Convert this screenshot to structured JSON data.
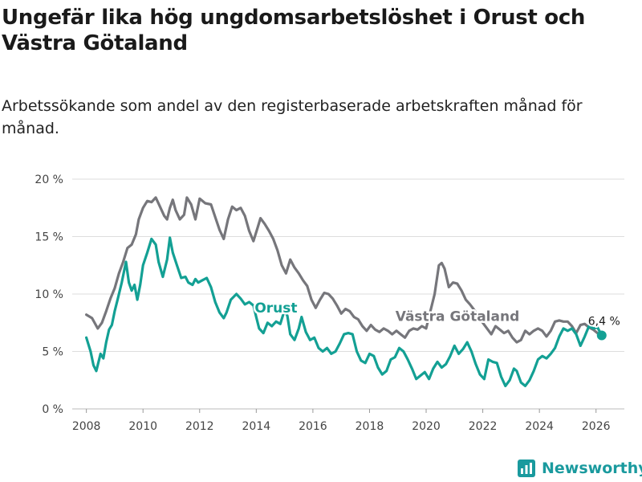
{
  "title": "Ungefär lika hög ungdomsarbetslöshet i Orust och Västra Götaland",
  "subtitle": "Arbetssökande som andel av den registerbaserade arbetskraften månad för månad.",
  "brand": "Newsworthy",
  "colors": {
    "orust": "#13a094",
    "vastra": "#76767b",
    "grid": "#dddddd",
    "axis": "#444444"
  },
  "chart_data": {
    "type": "line",
    "title": "Ungefär lika hög ungdomsarbetslöshet i Orust och Västra Götaland",
    "xlabel": "",
    "ylabel": "",
    "xlim": [
      2007.5,
      2027.0
    ],
    "ylim": [
      0,
      20
    ],
    "yticks": [
      0,
      5,
      10,
      15,
      20
    ],
    "ytick_labels": [
      "0 %",
      "5 %",
      "10 %",
      "15 %",
      "20 %"
    ],
    "xticks": [
      2008,
      2010,
      2012,
      2014,
      2016,
      2018,
      2020,
      2022,
      2024,
      2026
    ],
    "xtick_labels": [
      "2008",
      "2010",
      "2012",
      "2014",
      "2016",
      "2018",
      "2020",
      "2022",
      "2024",
      "2026"
    ],
    "grid": true,
    "series": [
      {
        "name": "Västra Götaland",
        "label": "Västra Götaland",
        "points": [
          [
            2008.0,
            8.2
          ],
          [
            2008.2,
            7.9
          ],
          [
            2008.4,
            7.0
          ],
          [
            2008.55,
            7.5
          ],
          [
            2008.7,
            8.5
          ],
          [
            2008.85,
            9.6
          ],
          [
            2009.0,
            10.5
          ],
          [
            2009.15,
            11.8
          ],
          [
            2009.3,
            12.8
          ],
          [
            2009.45,
            14.0
          ],
          [
            2009.6,
            14.3
          ],
          [
            2009.75,
            15.2
          ],
          [
            2009.85,
            16.5
          ],
          [
            2010.0,
            17.5
          ],
          [
            2010.15,
            18.1
          ],
          [
            2010.3,
            18.0
          ],
          [
            2010.45,
            18.4
          ],
          [
            2010.6,
            17.6
          ],
          [
            2010.75,
            16.8
          ],
          [
            2010.85,
            16.5
          ],
          [
            2010.95,
            17.5
          ],
          [
            2011.05,
            18.2
          ],
          [
            2011.15,
            17.3
          ],
          [
            2011.3,
            16.5
          ],
          [
            2011.45,
            16.9
          ],
          [
            2011.55,
            18.4
          ],
          [
            2011.7,
            17.8
          ],
          [
            2011.85,
            16.5
          ],
          [
            2012.0,
            18.3
          ],
          [
            2012.2,
            17.9
          ],
          [
            2012.4,
            17.8
          ],
          [
            2012.55,
            16.7
          ],
          [
            2012.7,
            15.6
          ],
          [
            2012.85,
            14.8
          ],
          [
            2013.0,
            16.5
          ],
          [
            2013.15,
            17.6
          ],
          [
            2013.3,
            17.3
          ],
          [
            2013.45,
            17.5
          ],
          [
            2013.6,
            16.8
          ],
          [
            2013.75,
            15.5
          ],
          [
            2013.9,
            14.6
          ],
          [
            2014.05,
            15.8
          ],
          [
            2014.15,
            16.6
          ],
          [
            2014.3,
            16.1
          ],
          [
            2014.45,
            15.5
          ],
          [
            2014.6,
            14.8
          ],
          [
            2014.75,
            13.8
          ],
          [
            2014.9,
            12.5
          ],
          [
            2015.05,
            11.8
          ],
          [
            2015.2,
            13.0
          ],
          [
            2015.35,
            12.3
          ],
          [
            2015.5,
            11.8
          ],
          [
            2015.65,
            11.2
          ],
          [
            2015.8,
            10.7
          ],
          [
            2015.95,
            9.5
          ],
          [
            2016.1,
            8.8
          ],
          [
            2016.25,
            9.5
          ],
          [
            2016.4,
            10.1
          ],
          [
            2016.55,
            10.0
          ],
          [
            2016.7,
            9.6
          ],
          [
            2016.85,
            9.0
          ],
          [
            2017.0,
            8.3
          ],
          [
            2017.15,
            8.7
          ],
          [
            2017.3,
            8.5
          ],
          [
            2017.45,
            8.0
          ],
          [
            2017.6,
            7.8
          ],
          [
            2017.75,
            7.2
          ],
          [
            2017.9,
            6.8
          ],
          [
            2018.05,
            7.3
          ],
          [
            2018.2,
            6.9
          ],
          [
            2018.35,
            6.7
          ],
          [
            2018.5,
            7.0
          ],
          [
            2018.65,
            6.8
          ],
          [
            2018.8,
            6.5
          ],
          [
            2018.95,
            6.8
          ],
          [
            2019.1,
            6.5
          ],
          [
            2019.25,
            6.2
          ],
          [
            2019.4,
            6.8
          ],
          [
            2019.55,
            7.0
          ],
          [
            2019.7,
            6.9
          ],
          [
            2019.85,
            7.2
          ],
          [
            2020.0,
            7.0
          ],
          [
            2020.15,
            8.5
          ],
          [
            2020.3,
            10.0
          ],
          [
            2020.45,
            12.5
          ],
          [
            2020.55,
            12.7
          ],
          [
            2020.65,
            12.2
          ],
          [
            2020.8,
            10.6
          ],
          [
            2020.95,
            11.0
          ],
          [
            2021.1,
            10.9
          ],
          [
            2021.25,
            10.3
          ],
          [
            2021.4,
            9.5
          ],
          [
            2021.55,
            9.1
          ],
          [
            2021.7,
            8.6
          ],
          [
            2021.85,
            8.0
          ],
          [
            2022.0,
            7.5
          ],
          [
            2022.15,
            7.0
          ],
          [
            2022.3,
            6.5
          ],
          [
            2022.45,
            7.2
          ],
          [
            2022.6,
            6.9
          ],
          [
            2022.75,
            6.6
          ],
          [
            2022.9,
            6.8
          ],
          [
            2023.05,
            6.2
          ],
          [
            2023.2,
            5.8
          ],
          [
            2023.35,
            6.0
          ],
          [
            2023.5,
            6.8
          ],
          [
            2023.65,
            6.5
          ],
          [
            2023.8,
            6.8
          ],
          [
            2023.95,
            7.0
          ],
          [
            2024.1,
            6.8
          ],
          [
            2024.25,
            6.3
          ],
          [
            2024.4,
            6.8
          ],
          [
            2024.55,
            7.6
          ],
          [
            2024.7,
            7.7
          ],
          [
            2024.85,
            7.6
          ],
          [
            2025.0,
            7.6
          ],
          [
            2025.15,
            7.2
          ],
          [
            2025.3,
            6.6
          ],
          [
            2025.45,
            7.3
          ],
          [
            2025.6,
            7.4
          ],
          [
            2025.75,
            7.1
          ],
          [
            2025.9,
            6.9
          ],
          [
            2026.05,
            6.6
          ]
        ]
      },
      {
        "name": "Orust",
        "label": "Orust",
        "points": [
          [
            2008.0,
            6.2
          ],
          [
            2008.15,
            5.0
          ],
          [
            2008.25,
            3.8
          ],
          [
            2008.35,
            3.3
          ],
          [
            2008.5,
            4.8
          ],
          [
            2008.6,
            4.4
          ],
          [
            2008.7,
            5.8
          ],
          [
            2008.8,
            6.9
          ],
          [
            2008.9,
            7.3
          ],
          [
            2009.0,
            8.5
          ],
          [
            2009.1,
            9.5
          ],
          [
            2009.25,
            11.0
          ],
          [
            2009.4,
            12.8
          ],
          [
            2009.5,
            11.0
          ],
          [
            2009.6,
            10.3
          ],
          [
            2009.7,
            10.8
          ],
          [
            2009.8,
            9.5
          ],
          [
            2009.9,
            10.8
          ],
          [
            2010.0,
            12.5
          ],
          [
            2010.15,
            13.6
          ],
          [
            2010.3,
            14.8
          ],
          [
            2010.45,
            14.3
          ],
          [
            2010.55,
            12.8
          ],
          [
            2010.7,
            11.5
          ],
          [
            2010.85,
            13.0
          ],
          [
            2010.95,
            14.9
          ],
          [
            2011.05,
            13.6
          ],
          [
            2011.2,
            12.5
          ],
          [
            2011.35,
            11.4
          ],
          [
            2011.5,
            11.5
          ],
          [
            2011.6,
            11.0
          ],
          [
            2011.75,
            10.8
          ],
          [
            2011.85,
            11.3
          ],
          [
            2011.95,
            11.0
          ],
          [
            2012.1,
            11.2
          ],
          [
            2012.25,
            11.4
          ],
          [
            2012.4,
            10.6
          ],
          [
            2012.55,
            9.3
          ],
          [
            2012.7,
            8.4
          ],
          [
            2012.85,
            7.9
          ],
          [
            2012.95,
            8.4
          ],
          [
            2013.1,
            9.5
          ],
          [
            2013.3,
            10.0
          ],
          [
            2013.45,
            9.6
          ],
          [
            2013.6,
            9.1
          ],
          [
            2013.75,
            9.3
          ],
          [
            2013.9,
            9.0
          ],
          [
            2014.0,
            8.0
          ],
          [
            2014.1,
            7.0
          ],
          [
            2014.25,
            6.6
          ],
          [
            2014.4,
            7.5
          ],
          [
            2014.55,
            7.2
          ],
          [
            2014.7,
            7.6
          ],
          [
            2014.85,
            7.4
          ],
          [
            2015.0,
            8.6
          ],
          [
            2015.1,
            8.1
          ],
          [
            2015.2,
            6.5
          ],
          [
            2015.35,
            6.0
          ],
          [
            2015.5,
            7.0
          ],
          [
            2015.6,
            8.0
          ],
          [
            2015.75,
            6.7
          ],
          [
            2015.9,
            6.0
          ],
          [
            2016.05,
            6.2
          ],
          [
            2016.2,
            5.3
          ],
          [
            2016.35,
            5.0
          ],
          [
            2016.5,
            5.3
          ],
          [
            2016.65,
            4.8
          ],
          [
            2016.8,
            5.0
          ],
          [
            2016.95,
            5.7
          ],
          [
            2017.1,
            6.5
          ],
          [
            2017.25,
            6.6
          ],
          [
            2017.4,
            6.5
          ],
          [
            2017.55,
            5.0
          ],
          [
            2017.7,
            4.2
          ],
          [
            2017.85,
            4.0
          ],
          [
            2018.0,
            4.8
          ],
          [
            2018.15,
            4.6
          ],
          [
            2018.3,
            3.6
          ],
          [
            2018.45,
            3.0
          ],
          [
            2018.6,
            3.3
          ],
          [
            2018.75,
            4.3
          ],
          [
            2018.9,
            4.5
          ],
          [
            2019.05,
            5.3
          ],
          [
            2019.2,
            5.0
          ],
          [
            2019.35,
            4.3
          ],
          [
            2019.5,
            3.5
          ],
          [
            2019.65,
            2.6
          ],
          [
            2019.8,
            2.9
          ],
          [
            2019.95,
            3.2
          ],
          [
            2020.1,
            2.6
          ],
          [
            2020.25,
            3.5
          ],
          [
            2020.4,
            4.1
          ],
          [
            2020.55,
            3.6
          ],
          [
            2020.7,
            3.9
          ],
          [
            2020.85,
            4.6
          ],
          [
            2021.0,
            5.5
          ],
          [
            2021.15,
            4.8
          ],
          [
            2021.3,
            5.2
          ],
          [
            2021.45,
            5.8
          ],
          [
            2021.6,
            5.0
          ],
          [
            2021.75,
            3.9
          ],
          [
            2021.9,
            3.0
          ],
          [
            2022.05,
            2.6
          ],
          [
            2022.2,
            4.3
          ],
          [
            2022.35,
            4.1
          ],
          [
            2022.5,
            4.0
          ],
          [
            2022.65,
            2.8
          ],
          [
            2022.8,
            2.0
          ],
          [
            2022.95,
            2.5
          ],
          [
            2023.1,
            3.5
          ],
          [
            2023.2,
            3.3
          ],
          [
            2023.35,
            2.3
          ],
          [
            2023.5,
            2.0
          ],
          [
            2023.65,
            2.5
          ],
          [
            2023.8,
            3.3
          ],
          [
            2023.95,
            4.3
          ],
          [
            2024.1,
            4.6
          ],
          [
            2024.25,
            4.4
          ],
          [
            2024.4,
            4.8
          ],
          [
            2024.55,
            5.3
          ],
          [
            2024.7,
            6.3
          ],
          [
            2024.85,
            7.0
          ],
          [
            2025.0,
            6.8
          ],
          [
            2025.15,
            7.0
          ],
          [
            2025.3,
            6.5
          ],
          [
            2025.45,
            5.5
          ],
          [
            2025.6,
            6.3
          ],
          [
            2025.75,
            7.2
          ],
          [
            2025.9,
            7.0
          ],
          [
            2026.05,
            7.1
          ],
          [
            2026.2,
            6.4
          ]
        ]
      }
    ],
    "annotations": [
      {
        "text": "Orust",
        "x": 2014.0,
        "y": 8.6,
        "series": "Orust"
      },
      {
        "text": "Västra Götaland",
        "x": 2019.0,
        "y": 8.3,
        "series": "Västra Götaland"
      },
      {
        "text": "6,4 %",
        "x": 2026.2,
        "y": 6.4,
        "series": "Orust"
      }
    ]
  }
}
